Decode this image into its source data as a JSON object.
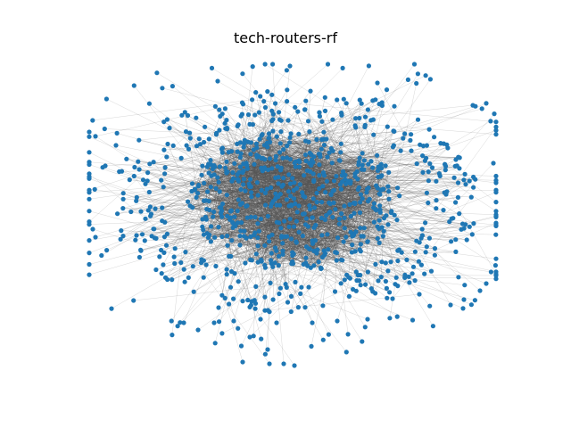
{
  "figure": {
    "title": "tech-routers-rf"
  },
  "graph": {
    "node_color": "#1f77b4",
    "edge_color": "#555555"
  }
}
